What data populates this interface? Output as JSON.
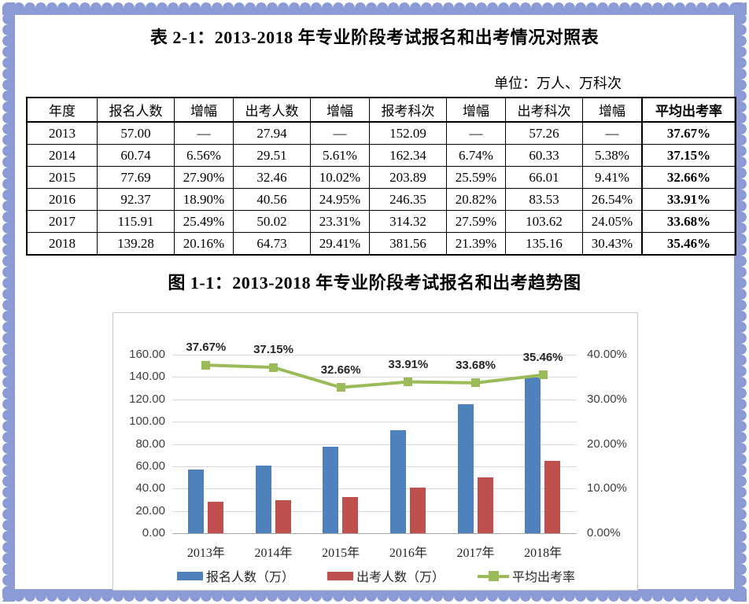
{
  "page": {
    "table_title": "表 2-1：2013-2018 年专业阶段考试报名和出考情况对照表",
    "unit_note": "单位：万人、万科次",
    "figure_title": "图 1-1：2013-2018 年专业阶段考试报名和出考趋势图"
  },
  "table": {
    "headers": [
      "年度",
      "报名人数",
      "增幅",
      "出考人数",
      "增幅",
      "报考科次",
      "增幅",
      "出考科次",
      "增幅",
      "平均出考率"
    ],
    "rows": [
      [
        "2013",
        "57.00",
        "—",
        "27.94",
        "—",
        "152.09",
        "—",
        "57.26",
        "—",
        "37.67%"
      ],
      [
        "2014",
        "60.74",
        "6.56%",
        "29.51",
        "5.61%",
        "162.34",
        "6.74%",
        "60.33",
        "5.38%",
        "37.15%"
      ],
      [
        "2015",
        "77.69",
        "27.90%",
        "32.46",
        "10.02%",
        "203.89",
        "25.59%",
        "66.01",
        "9.41%",
        "32.66%"
      ],
      [
        "2016",
        "92.37",
        "18.90%",
        "40.56",
        "24.95%",
        "246.35",
        "20.82%",
        "83.53",
        "26.54%",
        "33.91%"
      ],
      [
        "2017",
        "115.91",
        "25.49%",
        "50.02",
        "23.31%",
        "314.32",
        "27.59%",
        "103.62",
        "24.05%",
        "33.68%"
      ],
      [
        "2018",
        "139.28",
        "20.16%",
        "64.73",
        "29.41%",
        "381.56",
        "21.39%",
        "135.16",
        "30.43%",
        "35.46%"
      ]
    ]
  },
  "chart_data": {
    "type": "bar",
    "subtype": "combo-bar-line-dual-axis",
    "categories": [
      "2013年",
      "2014年",
      "2015年",
      "2016年",
      "2017年",
      "2018年"
    ],
    "series": [
      {
        "name": "报名人数（万）",
        "type": "bar",
        "axis": "left",
        "color": "#4F81BD",
        "values": [
          57.0,
          60.74,
          77.69,
          92.37,
          115.91,
          139.28
        ]
      },
      {
        "name": "出考人数（万）",
        "type": "bar",
        "axis": "left",
        "color": "#C0504D",
        "values": [
          27.94,
          29.51,
          32.46,
          40.56,
          50.02,
          64.73
        ]
      },
      {
        "name": "平均出考率",
        "type": "line",
        "axis": "right",
        "color": "#9BBB59",
        "values": [
          37.67,
          37.15,
          32.66,
          33.91,
          33.68,
          35.46
        ],
        "point_labels": [
          "37.67%",
          "37.15%",
          "32.66%",
          "33.91%",
          "33.68%",
          "35.46%"
        ]
      }
    ],
    "left_axis": {
      "min": 0,
      "max": 160,
      "step": 20,
      "ticks": [
        "0.00",
        "20.00",
        "40.00",
        "60.00",
        "80.00",
        "100.00",
        "120.00",
        "140.00",
        "160.00"
      ]
    },
    "right_axis": {
      "min": 0,
      "max": 40,
      "step": 10,
      "ticks": [
        "0.00%",
        "10.00%",
        "20.00%",
        "30.00%",
        "40.00%"
      ]
    },
    "grid": true,
    "legend_position": "bottom",
    "title": ""
  },
  "colors": {
    "stamp_border": "#8C9BD5",
    "bar_blue": "#4F81BD",
    "bar_red": "#C0504D",
    "line_green": "#9BBB59",
    "gridline": "#D9D9D9"
  }
}
